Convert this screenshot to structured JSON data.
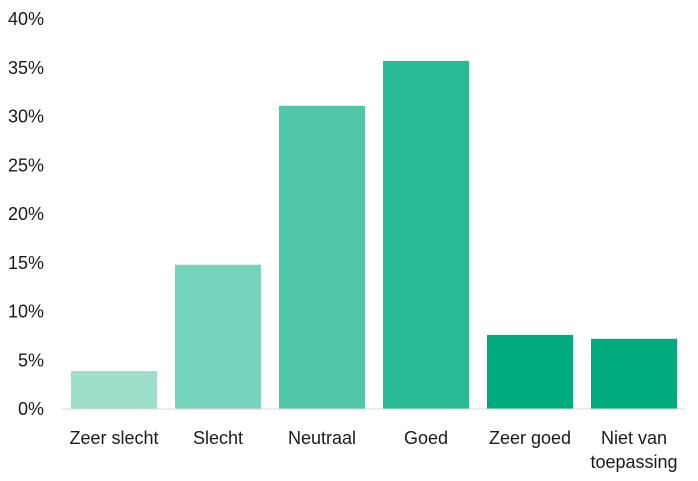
{
  "chart_data": {
    "type": "bar",
    "title": "",
    "xlabel": "",
    "ylabel": "",
    "categories": [
      [
        "Zeer slecht"
      ],
      [
        "Slecht"
      ],
      [
        "Neutraal"
      ],
      [
        "Goed"
      ],
      [
        "Zeer goed"
      ],
      [
        "Niet van",
        "toepassing"
      ]
    ],
    "values": [
      3.9,
      14.8,
      31.1,
      35.7,
      7.6,
      7.2
    ],
    "value_unit": "%",
    "ylim": [
      0,
      40
    ],
    "yticks": [
      0,
      5,
      10,
      15,
      20,
      25,
      30,
      35,
      40
    ],
    "ytick_labels": [
      "0%",
      "5%",
      "10%",
      "15%",
      "20%",
      "25%",
      "30%",
      "35%",
      "40%"
    ],
    "grid": false,
    "legend": "none",
    "colors": [
      "#9edfcb",
      "#76d3bc",
      "#50c6a9",
      "#28ba96",
      "#00ac7e",
      "#00ac7e"
    ]
  }
}
